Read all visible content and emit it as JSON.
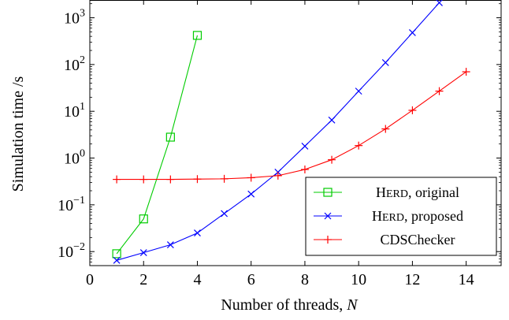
{
  "chart_data": {
    "type": "line",
    "xlabel": "Number of threads, ",
    "xlabel_var": "N",
    "ylabel": "Simulation time /s",
    "xlim": [
      0,
      15.3
    ],
    "ylim_log10": [
      -2.3,
      3.38
    ],
    "y_scale": "log",
    "x_ticks": [
      0,
      2,
      4,
      6,
      8,
      10,
      12,
      14
    ],
    "y_ticks": [
      {
        "exp": -2,
        "base": "10",
        "sup": "−2"
      },
      {
        "exp": -1,
        "base": "10",
        "sup": "−1"
      },
      {
        "exp": 0,
        "base": "10",
        "sup": "0"
      },
      {
        "exp": 1,
        "base": "10",
        "sup": "1"
      },
      {
        "exp": 2,
        "base": "10",
        "sup": "2"
      },
      {
        "exp": 3,
        "base": "10",
        "sup": "3"
      }
    ],
    "legend_position": "bottom-right",
    "grid": false,
    "series": [
      {
        "name": "HERD, original",
        "name_prefix": "H",
        "name_smallcaps": "ERD",
        "name_suffix": ", original",
        "color": "#00cc00",
        "marker": "square",
        "x": [
          1,
          2,
          3,
          4
        ],
        "y": [
          0.009,
          0.05,
          2.8,
          420
        ]
      },
      {
        "name": "HERD, proposed",
        "name_prefix": "H",
        "name_smallcaps": "ERD",
        "name_suffix": ", proposed",
        "color": "#0000ff",
        "marker": "x",
        "x": [
          1,
          2,
          3,
          4,
          5,
          6,
          7,
          8,
          9,
          10,
          11,
          12,
          13
        ],
        "y": [
          0.0065,
          0.0095,
          0.014,
          0.025,
          0.065,
          0.17,
          0.5,
          1.8,
          6.5,
          27,
          110,
          480,
          2100
        ]
      },
      {
        "name": "CDSChecker",
        "name_prefix": "CDSChecker",
        "name_smallcaps": "",
        "name_suffix": "",
        "color": "#ff0000",
        "marker": "plus",
        "x": [
          1,
          2,
          3,
          4,
          5,
          6,
          7,
          8,
          9,
          10,
          11,
          12,
          13,
          14
        ],
        "y": [
          0.35,
          0.35,
          0.35,
          0.355,
          0.36,
          0.38,
          0.42,
          0.57,
          0.92,
          1.85,
          4.2,
          10.5,
          27,
          70
        ]
      }
    ]
  }
}
